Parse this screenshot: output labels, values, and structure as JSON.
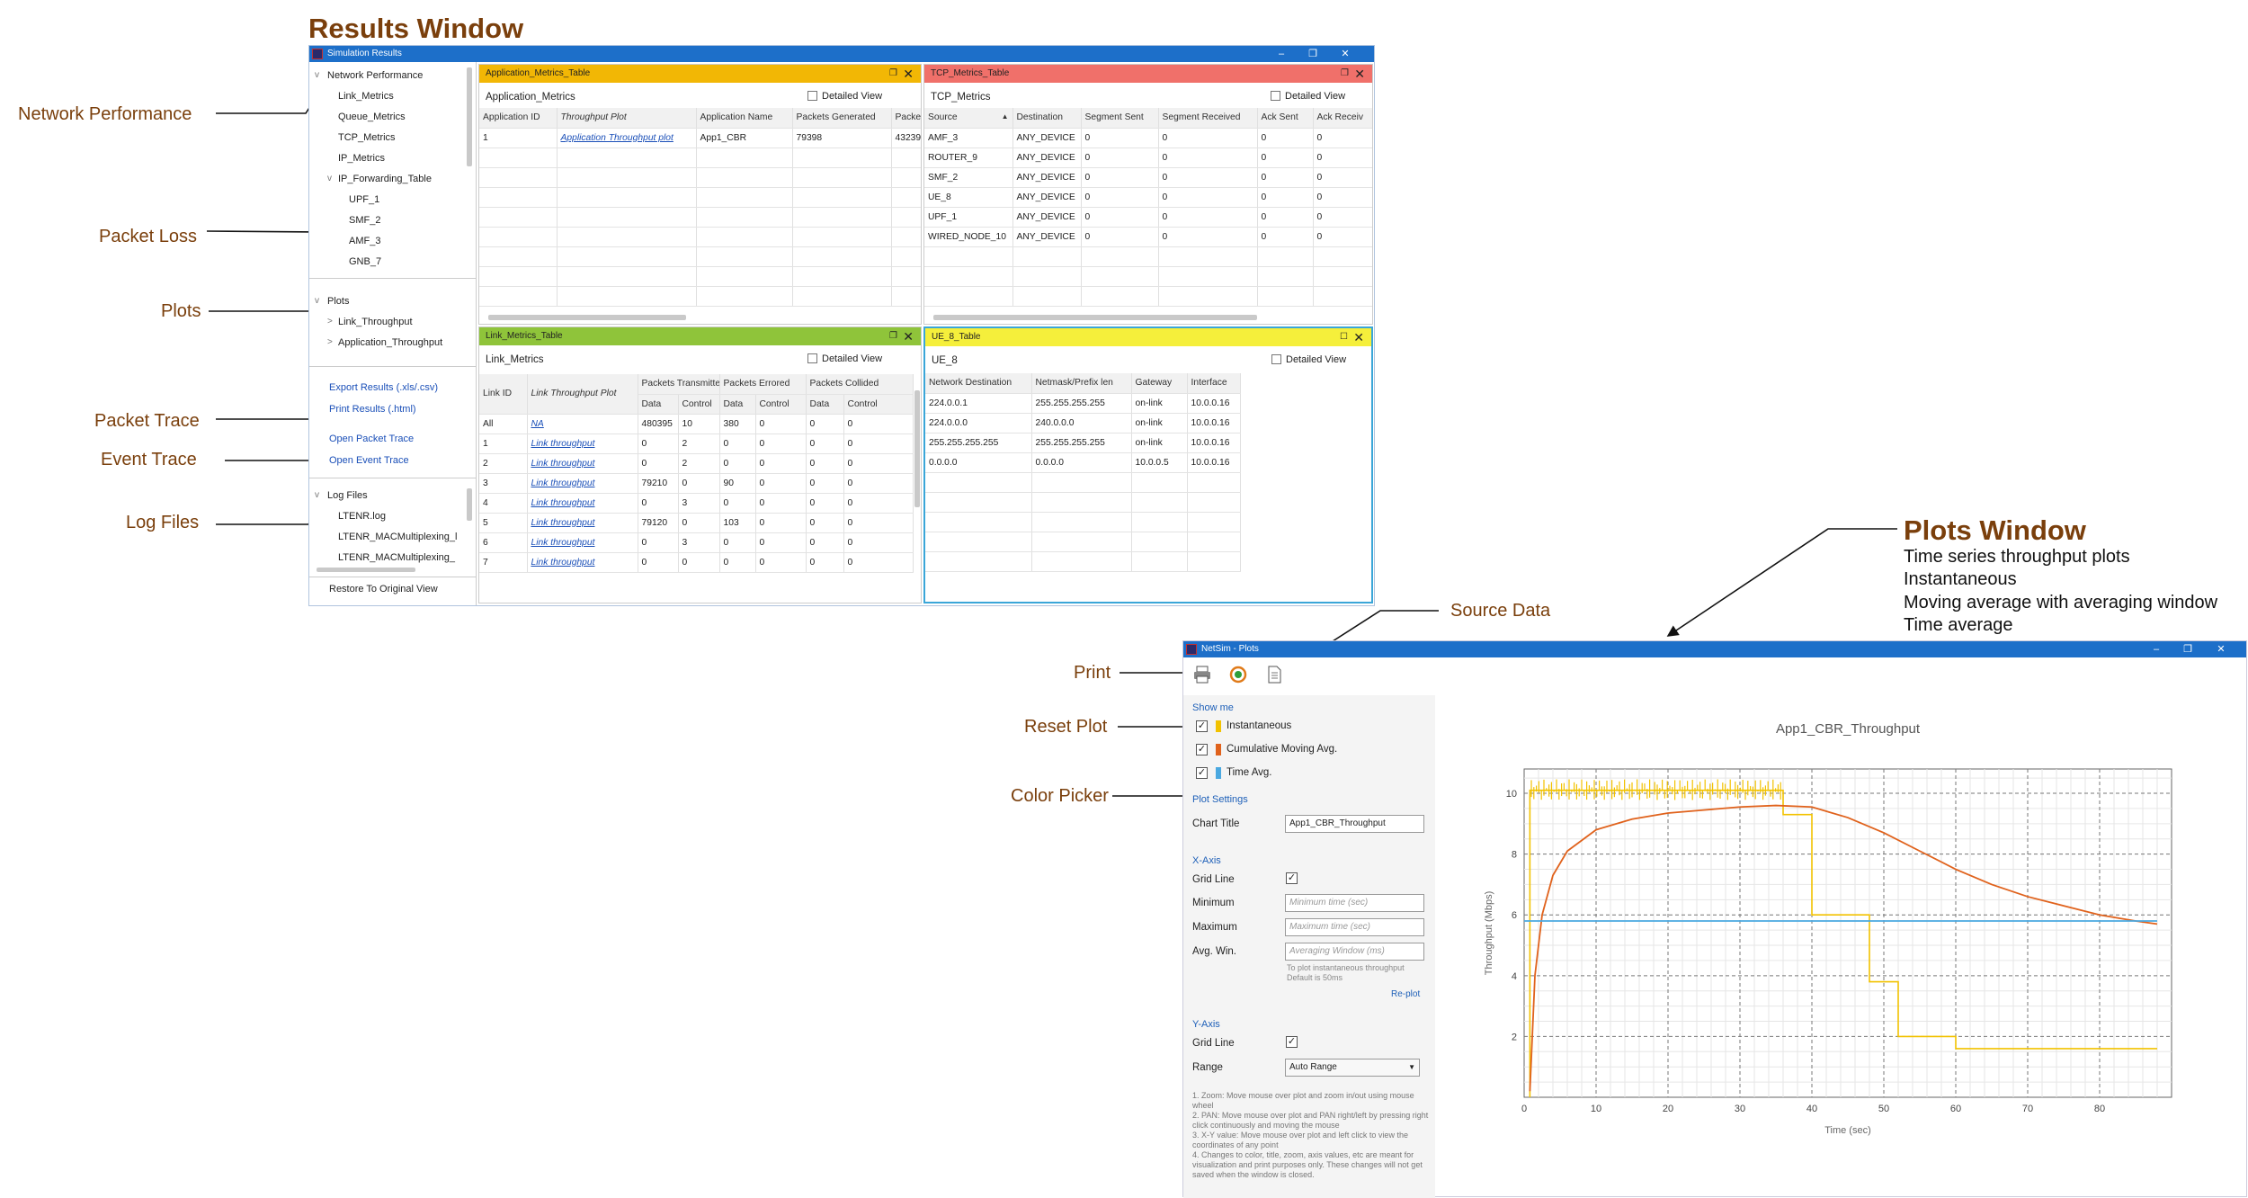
{
  "annotations": {
    "results_window_title": "Results Window",
    "plots_window_title": "Plots Window",
    "plots_window_desc": [
      "Time series throughput plots",
      "Instantaneous",
      "Moving average with averaging window",
      "Time average"
    ],
    "network_performance": "Network Performance",
    "packet_loss": "Packet Loss",
    "plots": "Plots",
    "packet_trace": "Packet Trace",
    "event_trace": "Event Trace",
    "log_files": "Log Files",
    "source_data": "Source Data",
    "print": "Print",
    "reset_plot": "Reset Plot",
    "color_picker": "Color Picker"
  },
  "results_window": {
    "title": "Simulation Results",
    "tree": {
      "network_performance": "Network Performance",
      "items": [
        "Link_Metrics",
        "Queue_Metrics",
        "TCP_Metrics",
        "IP_Metrics"
      ],
      "ip_forwarding": "IP_Forwarding_Table",
      "ip_children": [
        "UPF_1",
        "SMF_2",
        "AMF_3",
        "GNB_7"
      ],
      "plots": "Plots",
      "plot_items": [
        "Link_Throughput",
        "Application_Throughput"
      ],
      "export": "Export Results (.xls/.csv)",
      "print": "Print Results (.html)",
      "open_packet_trace": "Open Packet Trace",
      "open_event_trace": "Open Event Trace",
      "log_files": "Log Files",
      "log_items": [
        "LTENR.log",
        "LTENR_MACMultiplexing_l",
        "LTENR_MACMultiplexing_"
      ],
      "restore": "Restore To Original View"
    },
    "detailed_view": "Detailed View",
    "app_panel": {
      "header": "Application_Metrics_Table",
      "subtitle": "Application_Metrics",
      "columns": [
        "Application ID",
        "Throughput Plot",
        "Application Name",
        "Packets Generated",
        "Packe"
      ],
      "rows": [
        [
          "1",
          "Application Throughput plot",
          "App1_CBR",
          "79398",
          "43239"
        ]
      ]
    },
    "tcp_panel": {
      "header": "TCP_Metrics_Table",
      "subtitle": "TCP_Metrics",
      "columns": [
        "Source",
        "Destination",
        "Segment Sent",
        "Segment Received",
        "Ack Sent",
        "Ack Receiv"
      ],
      "rows": [
        [
          "AMF_3",
          "ANY_DEVICE",
          "0",
          "0",
          "0",
          "0"
        ],
        [
          "ROUTER_9",
          "ANY_DEVICE",
          "0",
          "0",
          "0",
          "0"
        ],
        [
          "SMF_2",
          "ANY_DEVICE",
          "0",
          "0",
          "0",
          "0"
        ],
        [
          "UE_8",
          "ANY_DEVICE",
          "0",
          "0",
          "0",
          "0"
        ],
        [
          "UPF_1",
          "ANY_DEVICE",
          "0",
          "0",
          "0",
          "0"
        ],
        [
          "WIRED_NODE_10",
          "ANY_DEVICE",
          "0",
          "0",
          "0",
          "0"
        ]
      ]
    },
    "link_panel": {
      "header": "Link_Metrics_Table",
      "subtitle": "Link_Metrics",
      "group_columns": [
        "Link ID",
        "Link Throughput Plot",
        "Packets Transmitted",
        "Packets Errored",
        "Packets Collided"
      ],
      "sub_columns": [
        "Data",
        "Control",
        "Data",
        "Control",
        "Data",
        "Control"
      ],
      "rows": [
        [
          "All",
          "NA",
          "480395",
          "10",
          "380",
          "0",
          "0",
          "0"
        ],
        [
          "1",
          "Link throughput",
          "0",
          "2",
          "0",
          "0",
          "0",
          "0"
        ],
        [
          "2",
          "Link throughput",
          "0",
          "2",
          "0",
          "0",
          "0",
          "0"
        ],
        [
          "3",
          "Link throughput",
          "79210",
          "0",
          "90",
          "0",
          "0",
          "0"
        ],
        [
          "4",
          "Link throughput",
          "0",
          "3",
          "0",
          "0",
          "0",
          "0"
        ],
        [
          "5",
          "Link throughput",
          "79120",
          "0",
          "103",
          "0",
          "0",
          "0"
        ],
        [
          "6",
          "Link throughput",
          "0",
          "3",
          "0",
          "0",
          "0",
          "0"
        ],
        [
          "7",
          "Link throughput",
          "0",
          "0",
          "0",
          "0",
          "0",
          "0"
        ]
      ]
    },
    "ue_panel": {
      "header": "UE_8_Table",
      "subtitle": "UE_8",
      "columns": [
        "Network Destination",
        "Netmask/Prefix len",
        "Gateway",
        "Interface"
      ],
      "rows": [
        [
          "224.0.0.1",
          "255.255.255.255",
          "on-link",
          "10.0.0.16"
        ],
        [
          "224.0.0.0",
          "240.0.0.0",
          "on-link",
          "10.0.0.16"
        ],
        [
          "255.255.255.255",
          "255.255.255.255",
          "on-link",
          "10.0.0.16"
        ],
        [
          "0.0.0.0",
          "0.0.0.0",
          "10.0.0.5",
          "10.0.0.16"
        ]
      ]
    }
  },
  "plots_window": {
    "title": "NetSim - Plots",
    "show_me": "Show me",
    "series_toggles": [
      {
        "label": "Instantaneous",
        "checked": true,
        "color": "#f2c200"
      },
      {
        "label": "Cumulative Moving Avg.",
        "checked": true,
        "color": "#e0621c"
      },
      {
        "label": "Time Avg.",
        "checked": true,
        "color": "#4aa8e0"
      }
    ],
    "plot_settings": "Plot Settings",
    "chart_title_label": "Chart Title",
    "chart_title_value": "App1_CBR_Throughput",
    "x_axis": "X-Axis",
    "grid_line": "Grid Line",
    "minimum": "Minimum",
    "minimum_placeholder": "Minimum time (sec)",
    "maximum": "Maximum",
    "maximum_placeholder": "Maximum time (sec)",
    "avg_win": "Avg. Win.",
    "avg_win_placeholder": "Averaging Window (ms)",
    "avg_hint_1": "To plot instantaneous throughput",
    "avg_hint_2": "Default is 50ms",
    "replot": "Re-plot",
    "y_axis": "Y-Axis",
    "range": "Range",
    "range_value": "Auto Range",
    "notes": [
      "1. Zoom: Move mouse over plot and zoom in/out using mouse wheel",
      "2. PAN: Move mouse over plot and PAN right/left by pressing right click continuously and moving the mouse",
      "3. X-Y value: Move mouse over plot and left click to view the coordinates of any point",
      "4. Changes to color, title, zoom, axis values, etc are meant for visualization and print purposes only. These changes will not get saved when the window is closed."
    ]
  },
  "chart_data": {
    "type": "line",
    "title": "App1_CBR_Throughput",
    "xlabel": "Time (sec)",
    "ylabel": "Throughput (Mbps)",
    "xlim": [
      0,
      90
    ],
    "ylim": [
      0,
      10.8
    ],
    "xticks": [
      0,
      10,
      20,
      30,
      40,
      50,
      60,
      70,
      80
    ],
    "yticks": [
      2,
      4,
      6,
      8,
      10
    ],
    "grid": true,
    "series": [
      {
        "name": "Instantaneous",
        "color": "#f2c200",
        "x": [
          0.8,
          0.8,
          36,
          36,
          40,
          40,
          48,
          48,
          52,
          52,
          60,
          60,
          88
        ],
        "y": [
          0,
          10.1,
          10.1,
          9.3,
          9.3,
          6.0,
          6.0,
          3.8,
          3.8,
          2.0,
          2.0,
          1.6,
          1.6
        ]
      },
      {
        "name": "Cumulative Moving Avg.",
        "color": "#e0621c",
        "x": [
          0.8,
          1.5,
          2.5,
          4,
          6,
          10,
          15,
          20,
          25,
          30,
          35,
          40,
          45,
          50,
          55,
          60,
          65,
          70,
          75,
          80,
          85,
          88
        ],
        "y": [
          0.2,
          4.0,
          6.0,
          7.3,
          8.1,
          8.8,
          9.15,
          9.35,
          9.45,
          9.55,
          9.6,
          9.55,
          9.2,
          8.7,
          8.1,
          7.5,
          7.0,
          6.6,
          6.3,
          6.0,
          5.8,
          5.7
        ]
      },
      {
        "name": "Time Avg.",
        "color": "#4aa8e0",
        "x": [
          0,
          88
        ],
        "y": [
          5.8,
          5.8
        ]
      }
    ]
  }
}
